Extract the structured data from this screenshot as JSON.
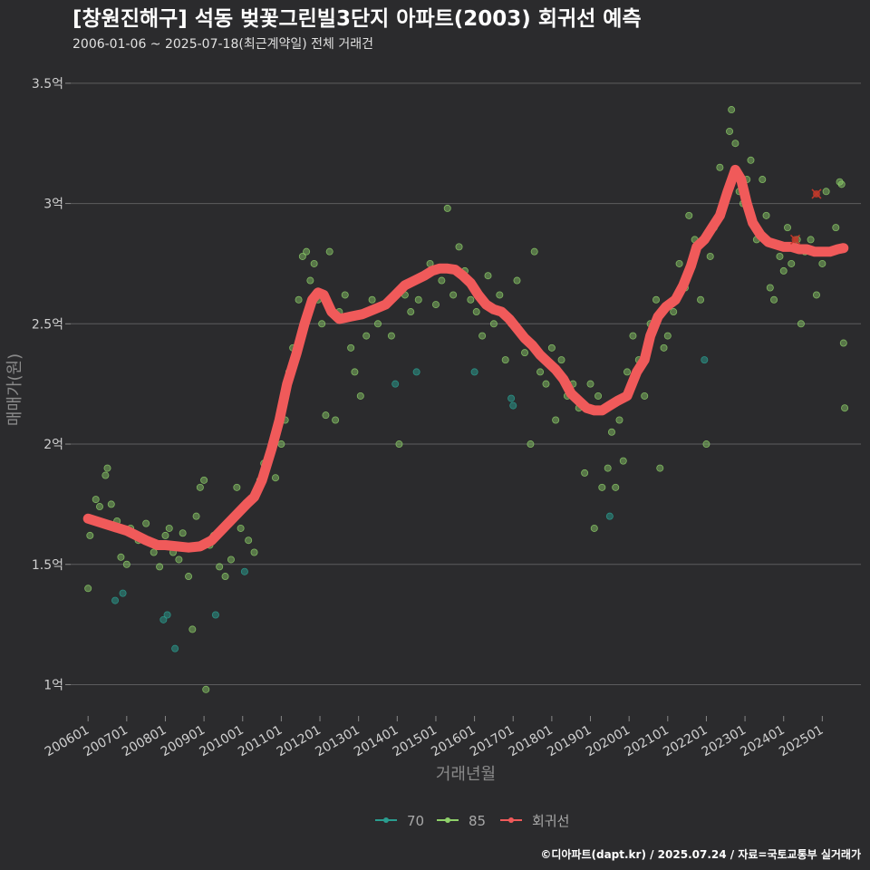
{
  "chart_data": {
    "type": "scatter",
    "title": "[창원진해구] 석동 벚꽃그린빌3단지 아파트(2003) 회귀선 예측",
    "subtitle": "2006-01-06 ~ 2025-07-18(최근계약일) 전체 거래건",
    "xlabel": "거래년월",
    "ylabel": "매매가(원)",
    "caption": "©디아파트(dapt.kr) / 2025.07.24 / 자료=국토교통부 실거래가",
    "xlim": [
      2005.55,
      2026.0
    ],
    "ylim": [
      0.87,
      3.62
    ],
    "y_ticks": [
      {
        "value": 1.0,
        "label": "1억"
      },
      {
        "value": 1.5,
        "label": "1.5억"
      },
      {
        "value": 2.0,
        "label": "2억"
      },
      {
        "value": 2.5,
        "label": "2.5억"
      },
      {
        "value": 3.0,
        "label": "3억"
      },
      {
        "value": 3.5,
        "label": "3.5억"
      }
    ],
    "x_ticks": [
      {
        "value": 2006.0,
        "label": "200601"
      },
      {
        "value": 2007.0,
        "label": "200701"
      },
      {
        "value": 2008.0,
        "label": "200801"
      },
      {
        "value": 2009.0,
        "label": "200901"
      },
      {
        "value": 2010.0,
        "label": "201001"
      },
      {
        "value": 2011.0,
        "label": "201101"
      },
      {
        "value": 2012.0,
        "label": "201201"
      },
      {
        "value": 2013.0,
        "label": "201301"
      },
      {
        "value": 2014.0,
        "label": "201401"
      },
      {
        "value": 2015.0,
        "label": "201501"
      },
      {
        "value": 2016.0,
        "label": "201601"
      },
      {
        "value": 2017.0,
        "label": "201701"
      },
      {
        "value": 2018.0,
        "label": "201801"
      },
      {
        "value": 2019.0,
        "label": "201901"
      },
      {
        "value": 2020.0,
        "label": "202001"
      },
      {
        "value": 2021.0,
        "label": "202101"
      },
      {
        "value": 2022.0,
        "label": "202201"
      },
      {
        "value": 2023.0,
        "label": "202301"
      },
      {
        "value": 2024.0,
        "label": "202401"
      },
      {
        "value": 2025.0,
        "label": "202501"
      }
    ],
    "legend": [
      {
        "name": "70",
        "color": "#2a9d8f"
      },
      {
        "name": "85",
        "color": "#8fd16a"
      },
      {
        "name": "회귀선",
        "color": "#f05a5a"
      }
    ],
    "series": [
      {
        "name": "70",
        "color": "#2a9d8f",
        "points": [
          [
            2006.7,
            1.35
          ],
          [
            2006.9,
            1.38
          ],
          [
            2007.95,
            1.27
          ],
          [
            2008.05,
            1.29
          ],
          [
            2008.25,
            1.15
          ],
          [
            2009.3,
            1.29
          ],
          [
            2010.05,
            1.47
          ],
          [
            2013.95,
            2.25
          ],
          [
            2014.5,
            2.3
          ],
          [
            2016.0,
            2.3
          ],
          [
            2016.95,
            2.19
          ],
          [
            2017.0,
            2.16
          ],
          [
            2019.5,
            1.7
          ],
          [
            2021.95,
            2.35
          ]
        ]
      },
      {
        "name": "85",
        "color": "#8fd16a",
        "points": [
          [
            2006.0,
            1.4
          ],
          [
            2006.05,
            1.62
          ],
          [
            2006.2,
            1.77
          ],
          [
            2006.3,
            1.74
          ],
          [
            2006.45,
            1.87
          ],
          [
            2006.5,
            1.9
          ],
          [
            2006.6,
            1.75
          ],
          [
            2006.75,
            1.68
          ],
          [
            2006.85,
            1.53
          ],
          [
            2007.0,
            1.5
          ],
          [
            2007.1,
            1.65
          ],
          [
            2007.3,
            1.6
          ],
          [
            2007.5,
            1.67
          ],
          [
            2007.7,
            1.55
          ],
          [
            2007.85,
            1.49
          ],
          [
            2008.0,
            1.62
          ],
          [
            2008.1,
            1.65
          ],
          [
            2008.2,
            1.55
          ],
          [
            2008.35,
            1.52
          ],
          [
            2008.45,
            1.63
          ],
          [
            2008.6,
            1.45
          ],
          [
            2008.7,
            1.23
          ],
          [
            2008.8,
            1.7
          ],
          [
            2008.9,
            1.82
          ],
          [
            2009.0,
            1.85
          ],
          [
            2009.05,
            0.98
          ],
          [
            2009.15,
            1.58
          ],
          [
            2009.25,
            1.62
          ],
          [
            2009.4,
            1.49
          ],
          [
            2009.55,
            1.45
          ],
          [
            2009.7,
            1.52
          ],
          [
            2009.85,
            1.82
          ],
          [
            2009.95,
            1.65
          ],
          [
            2010.15,
            1.6
          ],
          [
            2010.3,
            1.55
          ],
          [
            2010.45,
            1.85
          ],
          [
            2010.55,
            1.92
          ],
          [
            2010.7,
            1.95
          ],
          [
            2010.85,
            1.86
          ],
          [
            2011.0,
            2.0
          ],
          [
            2011.1,
            2.1
          ],
          [
            2011.2,
            2.3
          ],
          [
            2011.3,
            2.4
          ],
          [
            2011.45,
            2.6
          ],
          [
            2011.55,
            2.78
          ],
          [
            2011.65,
            2.8
          ],
          [
            2011.75,
            2.68
          ],
          [
            2011.85,
            2.75
          ],
          [
            2011.95,
            2.6
          ],
          [
            2012.05,
            2.5
          ],
          [
            2012.15,
            2.12
          ],
          [
            2012.25,
            2.8
          ],
          [
            2012.4,
            2.1
          ],
          [
            2012.5,
            2.55
          ],
          [
            2012.65,
            2.62
          ],
          [
            2012.8,
            2.4
          ],
          [
            2012.9,
            2.3
          ],
          [
            2013.05,
            2.2
          ],
          [
            2013.2,
            2.45
          ],
          [
            2013.35,
            2.6
          ],
          [
            2013.5,
            2.5
          ],
          [
            2013.7,
            2.58
          ],
          [
            2013.85,
            2.45
          ],
          [
            2014.05,
            2.0
          ],
          [
            2014.2,
            2.62
          ],
          [
            2014.35,
            2.55
          ],
          [
            2014.55,
            2.6
          ],
          [
            2014.7,
            2.7
          ],
          [
            2014.85,
            2.75
          ],
          [
            2015.0,
            2.58
          ],
          [
            2015.15,
            2.68
          ],
          [
            2015.3,
            2.98
          ],
          [
            2015.45,
            2.62
          ],
          [
            2015.6,
            2.82
          ],
          [
            2015.75,
            2.72
          ],
          [
            2015.9,
            2.6
          ],
          [
            2016.05,
            2.55
          ],
          [
            2016.2,
            2.45
          ],
          [
            2016.35,
            2.7
          ],
          [
            2016.5,
            2.5
          ],
          [
            2016.65,
            2.62
          ],
          [
            2016.8,
            2.35
          ],
          [
            2016.95,
            2.5
          ],
          [
            2017.1,
            2.68
          ],
          [
            2017.3,
            2.38
          ],
          [
            2017.45,
            2.0
          ],
          [
            2017.55,
            2.8
          ],
          [
            2017.7,
            2.3
          ],
          [
            2017.85,
            2.25
          ],
          [
            2018.0,
            2.4
          ],
          [
            2018.1,
            2.1
          ],
          [
            2018.25,
            2.35
          ],
          [
            2018.4,
            2.2
          ],
          [
            2018.55,
            2.25
          ],
          [
            2018.7,
            2.15
          ],
          [
            2018.85,
            1.88
          ],
          [
            2019.0,
            2.25
          ],
          [
            2019.1,
            1.65
          ],
          [
            2019.2,
            2.2
          ],
          [
            2019.3,
            1.82
          ],
          [
            2019.45,
            1.9
          ],
          [
            2019.55,
            2.05
          ],
          [
            2019.65,
            1.82
          ],
          [
            2019.75,
            2.1
          ],
          [
            2019.85,
            1.93
          ],
          [
            2019.95,
            2.3
          ],
          [
            2020.1,
            2.45
          ],
          [
            2020.25,
            2.35
          ],
          [
            2020.4,
            2.2
          ],
          [
            2020.55,
            2.5
          ],
          [
            2020.7,
            2.6
          ],
          [
            2020.8,
            1.9
          ],
          [
            2020.9,
            2.4
          ],
          [
            2021.0,
            2.45
          ],
          [
            2021.15,
            2.55
          ],
          [
            2021.3,
            2.75
          ],
          [
            2021.45,
            2.65
          ],
          [
            2021.55,
            2.95
          ],
          [
            2021.7,
            2.85
          ],
          [
            2021.85,
            2.6
          ],
          [
            2022.0,
            2.0
          ],
          [
            2022.1,
            2.78
          ],
          [
            2022.2,
            2.9
          ],
          [
            2022.35,
            3.15
          ],
          [
            2022.45,
            3.0
          ],
          [
            2022.6,
            3.3
          ],
          [
            2022.65,
            3.39
          ],
          [
            2022.75,
            3.25
          ],
          [
            2022.85,
            3.05
          ],
          [
            2022.95,
            3.0
          ],
          [
            2023.05,
            3.1
          ],
          [
            2023.15,
            3.18
          ],
          [
            2023.3,
            2.85
          ],
          [
            2023.45,
            3.1
          ],
          [
            2023.55,
            2.95
          ],
          [
            2023.65,
            2.65
          ],
          [
            2023.75,
            2.6
          ],
          [
            2023.9,
            2.78
          ],
          [
            2024.0,
            2.72
          ],
          [
            2024.1,
            2.9
          ],
          [
            2024.2,
            2.75
          ],
          [
            2024.35,
            2.85
          ],
          [
            2024.45,
            2.5
          ],
          [
            2024.55,
            2.8
          ],
          [
            2024.7,
            2.85
          ],
          [
            2024.85,
            2.62
          ],
          [
            2025.0,
            2.75
          ],
          [
            2025.1,
            3.05
          ],
          [
            2025.25,
            2.8
          ],
          [
            2025.35,
            2.9
          ],
          [
            2025.45,
            3.09
          ],
          [
            2025.5,
            3.08
          ],
          [
            2025.55,
            2.42
          ],
          [
            2025.58,
            2.15
          ]
        ]
      },
      {
        "name": "회귀선",
        "color": "#f05a5a",
        "points": [
          [
            2006.0,
            1.69
          ],
          [
            2006.5,
            1.665
          ],
          [
            2007.0,
            1.64
          ],
          [
            2007.5,
            1.6
          ],
          [
            2007.8,
            1.58
          ],
          [
            2008.0,
            1.58
          ],
          [
            2008.3,
            1.575
          ],
          [
            2008.6,
            1.57
          ],
          [
            2008.9,
            1.575
          ],
          [
            2009.2,
            1.6
          ],
          [
            2009.5,
            1.65
          ],
          [
            2009.8,
            1.7
          ],
          [
            2010.1,
            1.75
          ],
          [
            2010.3,
            1.78
          ],
          [
            2010.5,
            1.85
          ],
          [
            2010.75,
            1.98
          ],
          [
            2010.95,
            2.1
          ],
          [
            2011.15,
            2.25
          ],
          [
            2011.4,
            2.38
          ],
          [
            2011.6,
            2.5
          ],
          [
            2011.8,
            2.6
          ],
          [
            2011.95,
            2.63
          ],
          [
            2012.1,
            2.62
          ],
          [
            2012.3,
            2.55
          ],
          [
            2012.5,
            2.52
          ],
          [
            2012.8,
            2.53
          ],
          [
            2013.1,
            2.54
          ],
          [
            2013.4,
            2.56
          ],
          [
            2013.7,
            2.58
          ],
          [
            2013.95,
            2.62
          ],
          [
            2014.2,
            2.66
          ],
          [
            2014.45,
            2.68
          ],
          [
            2014.7,
            2.7
          ],
          [
            2014.9,
            2.72
          ],
          [
            2015.1,
            2.73
          ],
          [
            2015.3,
            2.73
          ],
          [
            2015.5,
            2.725
          ],
          [
            2015.7,
            2.7
          ],
          [
            2015.9,
            2.67
          ],
          [
            2016.1,
            2.62
          ],
          [
            2016.3,
            2.58
          ],
          [
            2016.5,
            2.56
          ],
          [
            2016.7,
            2.55
          ],
          [
            2016.9,
            2.52
          ],
          [
            2017.1,
            2.48
          ],
          [
            2017.3,
            2.44
          ],
          [
            2017.5,
            2.41
          ],
          [
            2017.7,
            2.37
          ],
          [
            2017.9,
            2.34
          ],
          [
            2018.1,
            2.31
          ],
          [
            2018.3,
            2.27
          ],
          [
            2018.5,
            2.21
          ],
          [
            2018.7,
            2.18
          ],
          [
            2018.9,
            2.15
          ],
          [
            2019.1,
            2.14
          ],
          [
            2019.3,
            2.14
          ],
          [
            2019.5,
            2.16
          ],
          [
            2019.7,
            2.18
          ],
          [
            2019.95,
            2.2
          ],
          [
            2020.2,
            2.3
          ],
          [
            2020.4,
            2.35
          ],
          [
            2020.55,
            2.45
          ],
          [
            2020.75,
            2.53
          ],
          [
            2020.95,
            2.57
          ],
          [
            2021.2,
            2.6
          ],
          [
            2021.4,
            2.66
          ],
          [
            2021.6,
            2.74
          ],
          [
            2021.75,
            2.82
          ],
          [
            2021.95,
            2.85
          ],
          [
            2022.15,
            2.9
          ],
          [
            2022.35,
            2.95
          ],
          [
            2022.55,
            3.05
          ],
          [
            2022.75,
            3.14
          ],
          [
            2022.9,
            3.1
          ],
          [
            2023.05,
            3.0
          ],
          [
            2023.2,
            2.92
          ],
          [
            2023.4,
            2.87
          ],
          [
            2023.6,
            2.84
          ],
          [
            2023.8,
            2.83
          ],
          [
            2024.0,
            2.82
          ],
          [
            2024.2,
            2.82
          ],
          [
            2024.4,
            2.81
          ],
          [
            2024.6,
            2.81
          ],
          [
            2024.8,
            2.8
          ],
          [
            2025.0,
            2.8
          ],
          [
            2025.2,
            2.8
          ],
          [
            2025.4,
            2.81
          ],
          [
            2025.55,
            2.815
          ]
        ]
      }
    ],
    "markers": [
      {
        "label": "x",
        "x": 2024.3,
        "y": 2.85
      },
      {
        "label": "x",
        "x": 2024.85,
        "y": 3.04
      }
    ]
  }
}
